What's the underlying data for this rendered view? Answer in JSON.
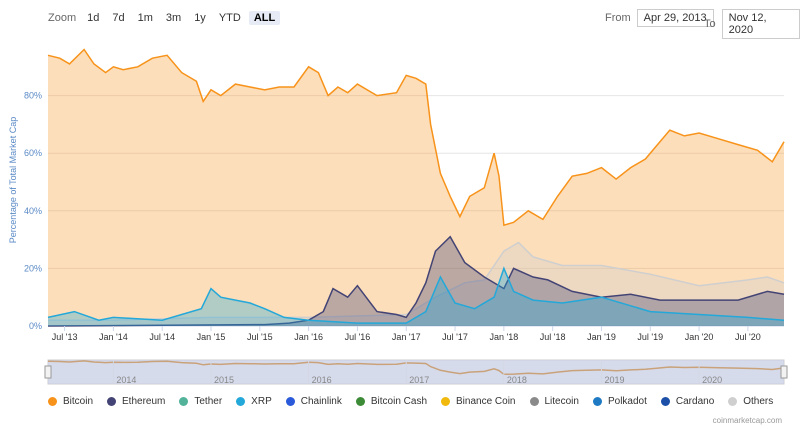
{
  "zoom": {
    "label": "Zoom",
    "buttons": [
      "1d",
      "7d",
      "1m",
      "3m",
      "1y",
      "YTD",
      "ALL"
    ],
    "active": "ALL"
  },
  "range": {
    "from_label": "From",
    "from_value": "Apr 29, 2013",
    "to_label": "To",
    "to_value": "Nov 12, 2020"
  },
  "colors": {
    "bitcoin": "#f7931a",
    "ethereum": "#434475",
    "tether": "#52b39a",
    "xrp": "#23a8d9",
    "chainlink": "#2a5ada",
    "bitcoin_cash": "#3d8b37",
    "binance_coin": "#f0b90b",
    "litecoin": "#8a8a8a",
    "polkadot": "#1f7ac4",
    "cardano": "#1b4fa8",
    "others": "#cfcfcf"
  },
  "credit": "coinmarketcap.com",
  "chart_data": {
    "type": "area",
    "ylabel": "Percentage of Total Market Cap",
    "ylim": [
      0,
      100
    ],
    "yticks": [
      0,
      20,
      40,
      60,
      80
    ],
    "ytick_labels": [
      "0%",
      "20%",
      "40%",
      "60%",
      "80%"
    ],
    "xlim": [
      2013.33,
      2020.87
    ],
    "xticks": [
      2013.5,
      2014.0,
      2014.5,
      2015.0,
      2015.5,
      2016.0,
      2016.5,
      2017.0,
      2017.5,
      2018.0,
      2018.5,
      2019.0,
      2019.5,
      2020.0,
      2020.5
    ],
    "xtick_labels": [
      "Jul '13",
      "Jan '14",
      "Jul '14",
      "Jan '15",
      "Jul '15",
      "Jan '16",
      "Jul '16",
      "Jan '17",
      "Jul '17",
      "Jan '18",
      "Jul '18",
      "Jan '19",
      "Jul '19",
      "Jan '20",
      "Jul '20"
    ],
    "navigator_years": [
      "2014",
      "2015",
      "2016",
      "2017",
      "2018",
      "2019",
      "2020"
    ],
    "navigator_x": [
      2014,
      2015,
      2016,
      2017,
      2018,
      2019,
      2020
    ],
    "legend": [
      "Bitcoin",
      "Ethereum",
      "Tether",
      "XRP",
      "Chainlink",
      "Bitcoin Cash",
      "Binance Coin",
      "Litecoin",
      "Polkadot",
      "Cardano",
      "Others"
    ],
    "series": [
      {
        "name": "Bitcoin",
        "key": "bitcoin",
        "x": [
          2013.33,
          2013.45,
          2013.55,
          2013.7,
          2013.8,
          2013.92,
          2014.0,
          2014.1,
          2014.25,
          2014.4,
          2014.55,
          2014.7,
          2014.85,
          2014.92,
          2015.0,
          2015.1,
          2015.25,
          2015.4,
          2015.55,
          2015.7,
          2015.85,
          2016.0,
          2016.1,
          2016.2,
          2016.3,
          2016.4,
          2016.5,
          2016.7,
          2016.9,
          2017.0,
          2017.1,
          2017.2,
          2017.25,
          2017.35,
          2017.45,
          2017.55,
          2017.65,
          2017.8,
          2017.9,
          2017.95,
          2018.0,
          2018.1,
          2018.25,
          2018.4,
          2018.55,
          2018.7,
          2018.85,
          2019.0,
          2019.15,
          2019.3,
          2019.45,
          2019.55,
          2019.7,
          2019.85,
          2020.0,
          2020.2,
          2020.4,
          2020.6,
          2020.75,
          2020.87
        ],
        "values": [
          94,
          93,
          91,
          96,
          91,
          88,
          90,
          89,
          90,
          93,
          94,
          88,
          85,
          78,
          82,
          80,
          84,
          83,
          82,
          83,
          83,
          90,
          88,
          80,
          83,
          81,
          84,
          80,
          81,
          87,
          86,
          84,
          70,
          53,
          45,
          38,
          45,
          48,
          60,
          52,
          35,
          36,
          40,
          37,
          45,
          52,
          53,
          55,
          51,
          55,
          58,
          62,
          68,
          66,
          67,
          65,
          63,
          61,
          57,
          64
        ]
      },
      {
        "name": "Ethereum",
        "key": "ethereum",
        "x": [
          2013.33,
          2015.55,
          2015.8,
          2016.0,
          2016.15,
          2016.25,
          2016.4,
          2016.5,
          2016.7,
          2016.9,
          2017.0,
          2017.1,
          2017.2,
          2017.3,
          2017.45,
          2017.6,
          2017.8,
          2018.0,
          2018.1,
          2018.3,
          2018.45,
          2018.7,
          2019.0,
          2019.3,
          2019.6,
          2020.0,
          2020.4,
          2020.7,
          2020.87
        ],
        "values": [
          0,
          0.5,
          1,
          2,
          5,
          13,
          10,
          14,
          5,
          4,
          3,
          8,
          15,
          26,
          31,
          22,
          17,
          13,
          20,
          17,
          16,
          12,
          10,
          11,
          9,
          9,
          9,
          12,
          11
        ]
      },
      {
        "name": "XRP",
        "key": "xrp",
        "x": [
          2013.33,
          2013.6,
          2013.85,
          2014.0,
          2014.5,
          2014.9,
          2015.0,
          2015.1,
          2015.25,
          2015.4,
          2015.55,
          2015.75,
          2016.0,
          2016.5,
          2017.0,
          2017.2,
          2017.35,
          2017.5,
          2017.7,
          2017.9,
          2018.0,
          2018.1,
          2018.3,
          2018.6,
          2019.0,
          2019.5,
          2020.0,
          2020.5,
          2020.87
        ],
        "values": [
          3,
          5,
          2,
          3,
          2,
          6,
          13,
          10,
          9,
          8,
          6,
          3,
          2,
          1,
          1,
          5,
          17,
          8,
          6,
          10,
          20,
          12,
          9,
          8,
          10,
          5,
          4,
          3,
          2
        ]
      },
      {
        "name": "Others",
        "key": "others",
        "x": [
          2013.33,
          2014.0,
          2015.0,
          2016.0,
          2017.0,
          2017.3,
          2017.6,
          2017.8,
          2018.0,
          2018.15,
          2018.3,
          2018.6,
          2019.0,
          2019.5,
          2020.0,
          2020.5,
          2020.7,
          2020.87
        ],
        "values": [
          2,
          2,
          3,
          3,
          4,
          10,
          15,
          16,
          26,
          29,
          24,
          21,
          21,
          18,
          14,
          16,
          17,
          15
        ]
      }
    ]
  }
}
